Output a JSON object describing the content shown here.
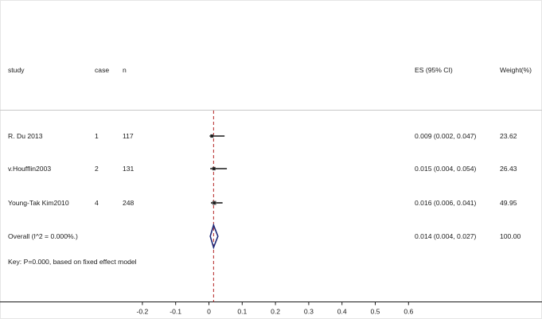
{
  "chart_data": {
    "type": "forest",
    "columns": {
      "study": "study",
      "case": "case",
      "n": "n",
      "es": "ES (95% CI)",
      "weight": "Weight(%)"
    },
    "studies": [
      {
        "study": "R. Du 2013",
        "case": "1",
        "n": "117",
        "es": 0.009,
        "lo": 0.002,
        "hi": 0.047,
        "es_text": "0.009 (0.002, 0.047)",
        "weight": "23.62",
        "weight_value": 23.62
      },
      {
        "study": "v.Houfflin2003",
        "case": "2",
        "n": "131",
        "es": 0.015,
        "lo": 0.004,
        "hi": 0.054,
        "es_text": "0.015 (0.004, 0.054)",
        "weight": "26.43",
        "weight_value": 26.43
      },
      {
        "study": "Young-Tak Kim2010",
        "case": "4",
        "n": "248",
        "es": 0.016,
        "lo": 0.006,
        "hi": 0.041,
        "es_text": "0.016 (0.006, 0.041)",
        "weight": "49.95",
        "weight_value": 49.95
      }
    ],
    "overall": {
      "label": "Overall  (I^2 = 0.000%.)",
      "es": 0.014,
      "lo": 0.004,
      "hi": 0.027,
      "es_text": "0.014 (0.004, 0.027)",
      "weight": "100.00"
    },
    "key_text": "Key: P=0.000, based on fixed effect model",
    "x_ticks": [
      -0.2,
      -0.1,
      0,
      0.1,
      0.2,
      0.3,
      0.4,
      0.5,
      0.6
    ],
    "x_tick_labels": [
      "-0.2",
      "-0.1",
      "0",
      "0.1",
      "0.2",
      "0.3",
      "0.4",
      "0.5",
      "0.6"
    ],
    "xlim": [
      -0.2,
      0.6
    ],
    "reference_line": 0.014,
    "colors": {
      "point": "#1a1a1a",
      "diamond": "#1f2a78",
      "reference_line": "#b22222",
      "header_rule": "#c8c8c8"
    }
  }
}
